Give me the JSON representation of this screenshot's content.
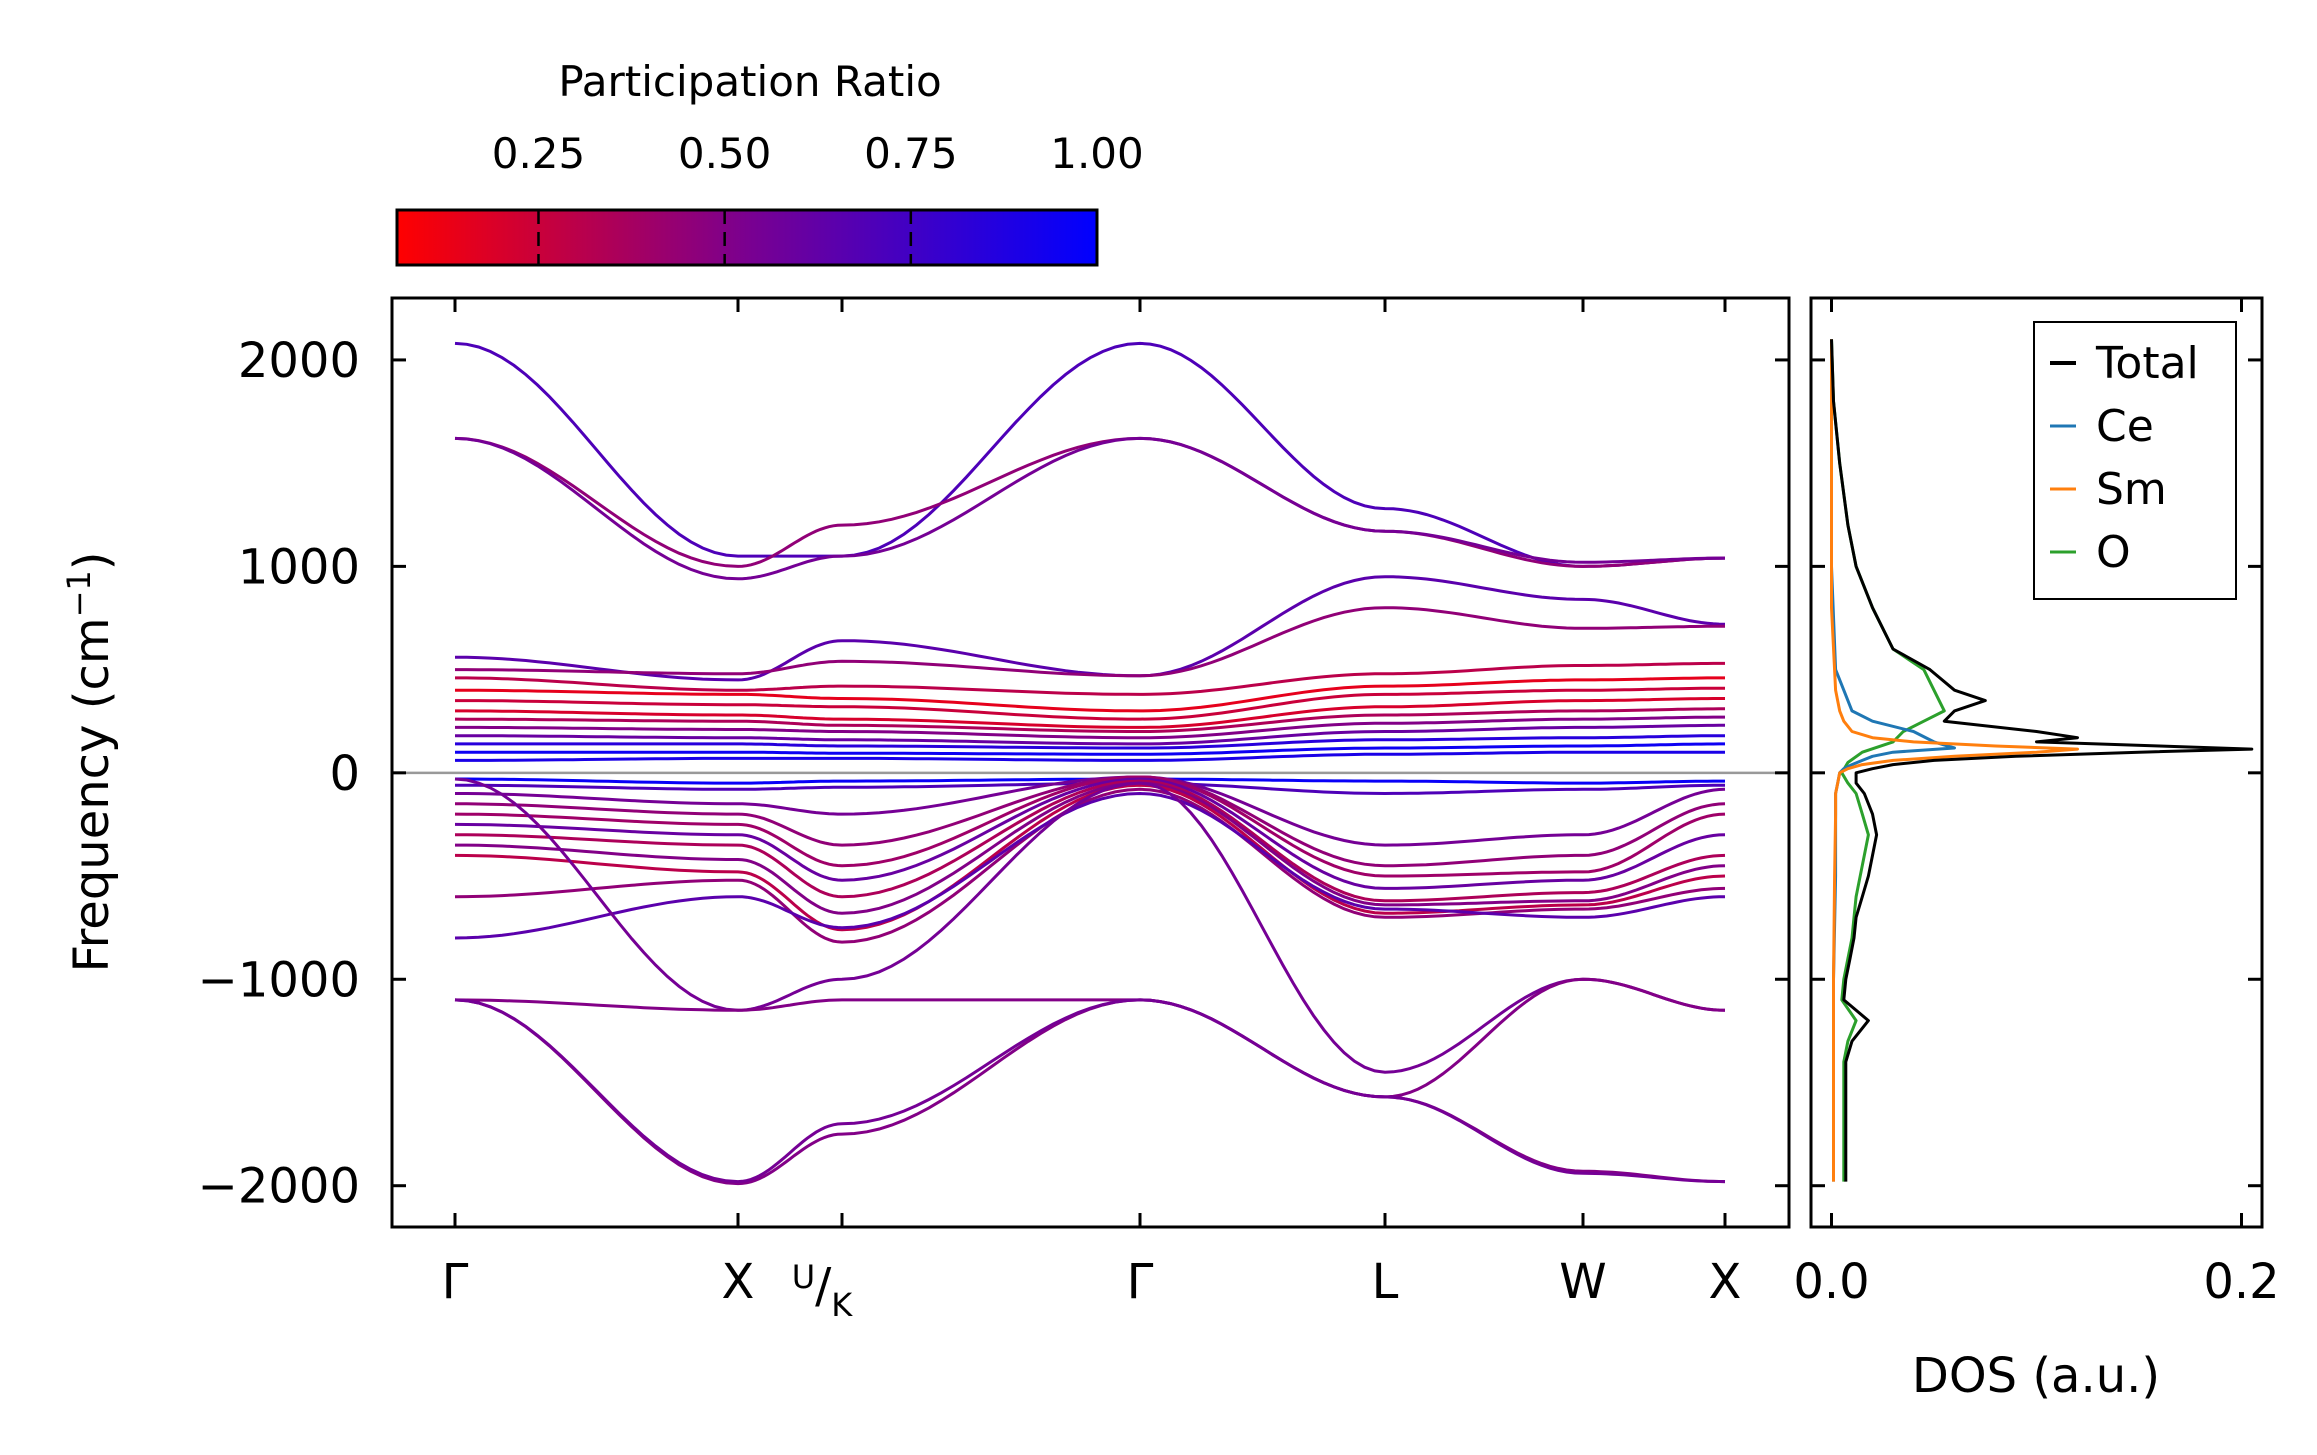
{
  "chart_data": {
    "type": "line",
    "band_panel": {
      "ylabel": "Frequency",
      "ylabel_unit": "(cm",
      "ylabel_exp": "−1",
      "ylabel_close": ")",
      "ylim": [
        -2200,
        2300
      ],
      "yticks": [
        2000,
        1000,
        0,
        -1000,
        -2000
      ],
      "ytick_labels": [
        "2000",
        "1000",
        "0",
        "−1000",
        "−2000"
      ],
      "path_positions": [
        0,
        1,
        1.37,
        2.43,
        3.3,
        4.0,
        4.5
      ],
      "path_labels": [
        "Γ",
        "X",
        "U/K",
        "Γ",
        "L",
        "W",
        "X"
      ],
      "uk_label": {
        "main": "U",
        "sub": "K"
      },
      "zero_line_color": "#999999",
      "representative_bands": [
        {
          "anchors": [
            2080,
            1050,
            1050,
            2080,
            1280,
            1000,
            1040
          ],
          "pr": 0.7
        },
        {
          "anchors": [
            1620,
            1000,
            1200,
            1620,
            1170,
            1000,
            1040
          ],
          "pr": 0.45
        },
        {
          "anchors": [
            1620,
            940,
            1050,
            1620,
            1170,
            1020,
            1040
          ],
          "pr": 0.55
        },
        {
          "anchors": [
            560,
            450,
            640,
            470,
            950,
            840,
            720
          ],
          "pr": 0.65
        },
        {
          "anchors": [
            500,
            480,
            540,
            470,
            800,
            700,
            710
          ],
          "pr": 0.45
        },
        {
          "anchors": [
            460,
            400,
            420,
            380,
            480,
            520,
            530
          ],
          "pr": 0.3
        },
        {
          "anchors": [
            400,
            380,
            360,
            300,
            420,
            450,
            460
          ],
          "pr": 0.15
        },
        {
          "anchors": [
            350,
            330,
            320,
            260,
            380,
            400,
            410
          ],
          "pr": 0.25
        },
        {
          "anchors": [
            300,
            280,
            260,
            220,
            320,
            350,
            360
          ],
          "pr": 0.2
        },
        {
          "anchors": [
            260,
            250,
            230,
            200,
            280,
            300,
            310
          ],
          "pr": 0.35
        },
        {
          "anchors": [
            220,
            210,
            200,
            170,
            240,
            260,
            270
          ],
          "pr": 0.5
        },
        {
          "anchors": [
            180,
            170,
            160,
            140,
            200,
            220,
            230
          ],
          "pr": 0.6
        },
        {
          "anchors": [
            140,
            140,
            130,
            120,
            160,
            170,
            180
          ],
          "pr": 0.85
        },
        {
          "anchors": [
            100,
            100,
            95,
            90,
            120,
            130,
            140
          ],
          "pr": 0.95
        },
        {
          "anchors": [
            60,
            70,
            70,
            60,
            90,
            100,
            100
          ],
          "pr": 0.9
        },
        {
          "anchors": [
            -30,
            -50,
            -40,
            -30,
            -40,
            -50,
            -40
          ],
          "pr": 0.97
        },
        {
          "anchors": [
            -60,
            -80,
            -70,
            -50,
            -100,
            -80,
            -60
          ],
          "pr": 0.7
        },
        {
          "anchors": [
            -100,
            -150,
            -200,
            -20,
            -350,
            -300,
            -80
          ],
          "pr": 0.55
        },
        {
          "anchors": [
            -150,
            -200,
            -350,
            -20,
            -450,
            -400,
            -150
          ],
          "pr": 0.45
        },
        {
          "anchors": [
            -200,
            -250,
            -450,
            -20,
            -500,
            -480,
            -200
          ],
          "pr": 0.4
        },
        {
          "anchors": [
            -250,
            -300,
            -520,
            -30,
            -560,
            -520,
            -300
          ],
          "pr": 0.6
        },
        {
          "anchors": [
            -300,
            -350,
            -600,
            -40,
            -620,
            -580,
            -400
          ],
          "pr": 0.35
        },
        {
          "anchors": [
            -350,
            -420,
            -680,
            -50,
            -640,
            -620,
            -450
          ],
          "pr": 0.5
        },
        {
          "anchors": [
            -400,
            -480,
            -760,
            -60,
            -680,
            -640,
            -500
          ],
          "pr": 0.3
        },
        {
          "anchors": [
            -600,
            -520,
            -820,
            -80,
            -700,
            -660,
            -560
          ],
          "pr": 0.45
        },
        {
          "anchors": [
            -800,
            -600,
            -750,
            -100,
            -660,
            -700,
            -600
          ],
          "pr": 0.65
        },
        {
          "anchors": [
            -30,
            -1150,
            -1000,
            -50,
            -1450,
            -1000,
            -1150
          ],
          "pr": 0.55
        },
        {
          "anchors": [
            -1100,
            -1150,
            -1100,
            -1100,
            -1570,
            -1000,
            -1150
          ],
          "pr": 0.5
        },
        {
          "anchors": [
            -1100,
            -1990,
            -1750,
            -1100,
            -1570,
            -1930,
            -1980
          ],
          "pr": 0.5
        },
        {
          "anchors": [
            -1100,
            -1980,
            -1700,
            -1100,
            -1570,
            -1940,
            -1980
          ],
          "pr": 0.55
        }
      ]
    },
    "colorbar": {
      "title": "Participation Ratio",
      "ticks": [
        0.25,
        0.5,
        0.75,
        1.0
      ],
      "tick_labels": [
        "0.25",
        "0.50",
        "0.75",
        "1.00"
      ],
      "range": [
        0.06,
        1.0
      ],
      "color_low": "#ff0000",
      "color_mid": "#7a0090",
      "color_high": "#0000ff"
    },
    "dos_panel": {
      "xlabel": "DOS (a.u.)",
      "xlim": [
        -0.01,
        0.21
      ],
      "xticks": [
        0.0,
        0.2
      ],
      "xtick_labels": [
        "0.0",
        "0.2"
      ],
      "legend": [
        {
          "name": "Total",
          "color": "#000000"
        },
        {
          "name": "Ce",
          "color": "#1f77b4"
        },
        {
          "name": "Sm",
          "color": "#ff7f0e"
        },
        {
          "name": "O",
          "color": "#2ca02c"
        }
      ],
      "series": [
        {
          "name": "O",
          "color": "#2ca02c",
          "y": [
            2100,
            1800,
            1500,
            1200,
            1000,
            800,
            600,
            500,
            400,
            300,
            250,
            200,
            150,
            100,
            50,
            0,
            -50,
            -100,
            -200,
            -300,
            -400,
            -500,
            -600,
            -700,
            -800,
            -900,
            -1000,
            -1100,
            -1200,
            -1300,
            -1400,
            -1600,
            -1800,
            -1980
          ],
          "x": [
            0.0,
            0.001,
            0.004,
            0.008,
            0.012,
            0.02,
            0.03,
            0.045,
            0.05,
            0.055,
            0.045,
            0.035,
            0.03,
            0.015,
            0.008,
            0.005,
            0.008,
            0.012,
            0.015,
            0.018,
            0.016,
            0.014,
            0.012,
            0.011,
            0.01,
            0.008,
            0.006,
            0.005,
            0.012,
            0.008,
            0.006,
            0.006,
            0.006,
            0.006
          ]
        },
        {
          "name": "Ce",
          "color": "#1f77b4",
          "y": [
            2100,
            1000,
            500,
            400,
            350,
            300,
            250,
            200,
            150,
            120,
            100,
            80,
            60,
            40,
            20,
            0,
            -50,
            -100,
            -200,
            -500,
            -1000,
            -1500,
            -1980
          ],
          "x": [
            0.0,
            0.0,
            0.002,
            0.006,
            0.008,
            0.01,
            0.02,
            0.04,
            0.05,
            0.06,
            0.03,
            0.02,
            0.015,
            0.01,
            0.006,
            0.004,
            0.003,
            0.002,
            0.002,
            0.002,
            0.001,
            0.001,
            0.001
          ]
        },
        {
          "name": "Sm",
          "color": "#ff7f0e",
          "y": [
            2100,
            800,
            400,
            300,
            250,
            200,
            170,
            150,
            130,
            115,
            100,
            80,
            60,
            40,
            20,
            0,
            -50,
            -100,
            -200,
            -500,
            -1000,
            -1500,
            -1980
          ],
          "x": [
            0.0,
            0.0,
            0.002,
            0.004,
            0.006,
            0.01,
            0.02,
            0.04,
            0.08,
            0.12,
            0.1,
            0.06,
            0.03,
            0.015,
            0.008,
            0.004,
            0.003,
            0.002,
            0.002,
            0.0015,
            0.001,
            0.001,
            0.001
          ]
        },
        {
          "name": "Total",
          "color": "#000000",
          "y": [
            2100,
            1800,
            1500,
            1200,
            1000,
            800,
            600,
            500,
            400,
            350,
            300,
            250,
            200,
            170,
            150,
            130,
            115,
            100,
            80,
            60,
            40,
            20,
            0,
            -50,
            -100,
            -200,
            -300,
            -400,
            -500,
            -600,
            -700,
            -800,
            -900,
            -1000,
            -1100,
            -1200,
            -1300,
            -1400,
            -1600,
            -1800,
            -1980
          ],
          "x": [
            0.0,
            0.001,
            0.004,
            0.008,
            0.012,
            0.02,
            0.03,
            0.048,
            0.06,
            0.075,
            0.06,
            0.055,
            0.1,
            0.12,
            0.1,
            0.16,
            0.205,
            0.15,
            0.09,
            0.05,
            0.03,
            0.02,
            0.012,
            0.012,
            0.016,
            0.02,
            0.022,
            0.02,
            0.018,
            0.015,
            0.012,
            0.011,
            0.009,
            0.007,
            0.006,
            0.018,
            0.01,
            0.007,
            0.007,
            0.007,
            0.007
          ]
        }
      ]
    }
  }
}
